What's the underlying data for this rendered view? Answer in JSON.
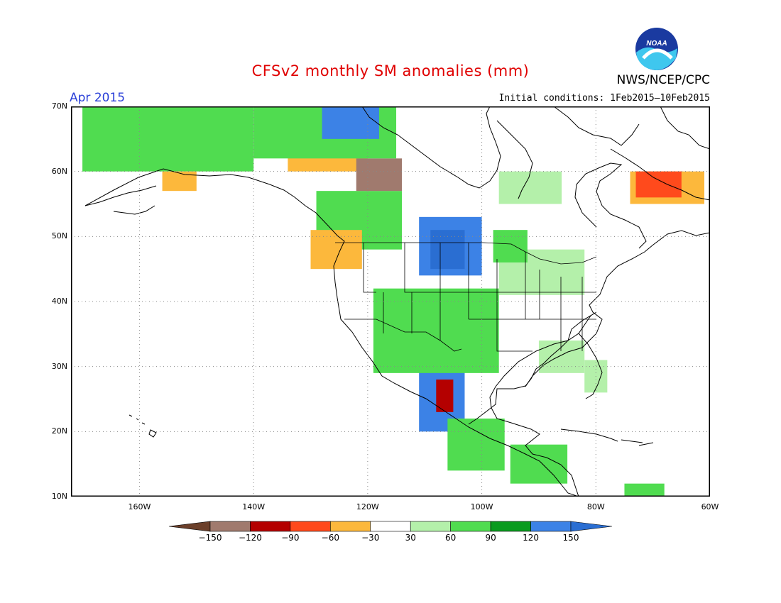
{
  "title": "CFSv2 monthly SM anomalies (mm)",
  "valid_period": "Apr 2015",
  "initial_conditions": "Initial conditions: 1Feb2015–10Feb2015",
  "agency": "NWS/NCEP/CPC",
  "logo_text": "NOAA",
  "map": {
    "lon_range": [
      -172,
      -60
    ],
    "lat_range": [
      10,
      70
    ],
    "lat_ticks": [
      {
        "value": 70,
        "label": "70N"
      },
      {
        "value": 60,
        "label": "60N"
      },
      {
        "value": 50,
        "label": "50N"
      },
      {
        "value": 40,
        "label": "40N"
      },
      {
        "value": 30,
        "label": "30N"
      },
      {
        "value": 20,
        "label": "20N"
      },
      {
        "value": 10,
        "label": "10N"
      }
    ],
    "lon_ticks": [
      {
        "value": -160,
        "label": "160W"
      },
      {
        "value": -140,
        "label": "140W"
      },
      {
        "value": -120,
        "label": "120W"
      },
      {
        "value": -100,
        "label": "100W"
      },
      {
        "value": -80,
        "label": "80W"
      },
      {
        "value": -60,
        "label": "60W"
      }
    ]
  },
  "colorbar": {
    "labels": [
      "−150",
      "−120",
      "−90",
      "−60",
      "−30",
      "30",
      "60",
      "90",
      "120",
      "150"
    ],
    "colors": [
      "#6b3f2a",
      "#a07a6e",
      "#b40000",
      "#ff4a1c",
      "#fcb83c",
      "#ffffff",
      "#b4f0aa",
      "#50dc50",
      "#0a9b1e",
      "#3c82e6",
      "#2a6ed2"
    ]
  },
  "chart_data": {
    "type": "heatmap",
    "title": "CFSv2 monthly SM anomalies (mm)",
    "subtitle": "Apr 2015",
    "units": "mm",
    "bins": [
      "<-150",
      "-150 to -120",
      "-120 to -90",
      "-90 to -60",
      "-60 to -30",
      "-30 to 30",
      "30 to 60",
      "60 to 90",
      "90 to 120",
      "120 to 150",
      ">150"
    ],
    "regions": [
      {
        "lon": [
          -111,
          -100
        ],
        "lat": [
          44,
          53
        ],
        "bin": 9
      },
      {
        "lon": [
          -109,
          -103
        ],
        "lat": [
          45,
          51
        ],
        "bin": 10
      },
      {
        "lon": [
          -111,
          -103
        ],
        "lat": [
          20,
          31
        ],
        "bin": 9
      },
      {
        "lon": [
          -107,
          -104
        ],
        "lat": [
          31,
          36
        ],
        "bin": 9
      },
      {
        "lon": [
          -119,
          -97
        ],
        "lat": [
          29,
          42
        ],
        "bin": 7
      },
      {
        "lon": [
          -106,
          -96
        ],
        "lat": [
          14,
          22
        ],
        "bin": 7
      },
      {
        "lon": [
          -97,
          -82
        ],
        "lat": [
          41,
          48
        ],
        "bin": 6
      },
      {
        "lon": [
          -98,
          -92
        ],
        "lat": [
          46,
          51
        ],
        "bin": 7
      },
      {
        "lon": [
          -129,
          -114
        ],
        "lat": [
          48,
          57
        ],
        "bin": 7
      },
      {
        "lon": [
          -134,
          -120
        ],
        "lat": [
          60,
          65
        ],
        "bin": 4
      },
      {
        "lon": [
          -122,
          -114
        ],
        "lat": [
          57,
          62
        ],
        "bin": 1
      },
      {
        "lon": [
          -74,
          -61
        ],
        "lat": [
          55,
          60
        ],
        "bin": 4
      },
      {
        "lon": [
          -73,
          -65
        ],
        "lat": [
          56,
          60
        ],
        "bin": 3
      },
      {
        "lon": [
          -170,
          -140
        ],
        "lat": [
          60,
          70
        ],
        "bin": 7
      },
      {
        "lon": [
          -140,
          -115
        ],
        "lat": [
          62,
          70
        ],
        "bin": 7
      },
      {
        "lon": [
          -128,
          -118
        ],
        "lat": [
          65,
          70
        ],
        "bin": 9
      },
      {
        "lon": [
          -90,
          -82
        ],
        "lat": [
          29,
          34
        ],
        "bin": 6
      },
      {
        "lon": [
          -82,
          -78
        ],
        "lat": [
          26,
          31
        ],
        "bin": 6
      },
      {
        "lon": [
          -130,
          -121
        ],
        "lat": [
          45,
          51
        ],
        "bin": 4
      },
      {
        "lon": [
          -95,
          -85
        ],
        "lat": [
          12,
          18
        ],
        "bin": 7
      },
      {
        "lon": [
          -108,
          -105
        ],
        "lat": [
          23,
          28
        ],
        "bin": 2
      },
      {
        "lon": [
          -156,
          -150
        ],
        "lat": [
          57,
          60
        ],
        "bin": 4
      },
      {
        "lon": [
          -97,
          -86
        ],
        "lat": [
          55,
          60
        ],
        "bin": 6
      },
      {
        "lon": [
          -75,
          -68
        ],
        "lat": [
          10,
          12
        ],
        "bin": 7
      }
    ]
  }
}
